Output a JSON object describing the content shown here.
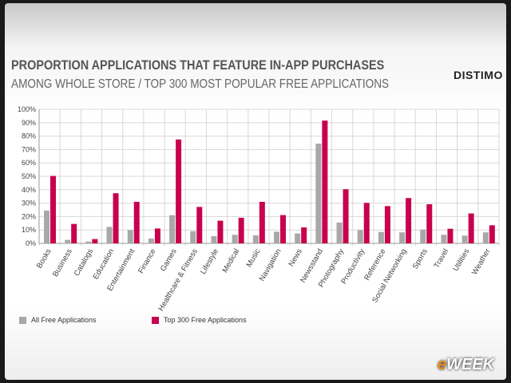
{
  "brand": "DISTIMO",
  "watermark": "eWEEK",
  "chart_data": {
    "type": "bar",
    "title": "PROPORTION APPLICATIONS THAT FEATURE IN-APP PURCHASES",
    "subtitle": "AMONG WHOLE STORE / TOP 300 MOST POPULAR FREE APPLICATIONS",
    "xlabel": "",
    "ylabel": "",
    "ylim": [
      0,
      100
    ],
    "yticks": [
      "0%",
      "10%",
      "20%",
      "30%",
      "40%",
      "50%",
      "60%",
      "70%",
      "80%",
      "90%",
      "100%"
    ],
    "grid": true,
    "legend_position": "bottom-left",
    "categories": [
      "Books",
      "Business",
      "Catalogs",
      "Education",
      "Entertainment",
      "Finance",
      "Games",
      "Healthcare & Fitness",
      "Lifestyle",
      "Medical",
      "Music",
      "Navigation",
      "News",
      "Newsstand",
      "Photography",
      "Productivity",
      "Reference",
      "Social Networking",
      "Sports",
      "Travel",
      "Utilities",
      "Weather"
    ],
    "series": [
      {
        "name": "All Free Applications",
        "color": "#a8a8a8",
        "values": [
          24.5,
          2.6,
          1.4,
          12.3,
          9.9,
          3.6,
          21,
          9.1,
          5.4,
          6.4,
          6,
          8.7,
          7.4,
          74.4,
          15.5,
          9.9,
          8.5,
          8.2,
          10.3,
          6.4,
          5.8,
          8.2
        ]
      },
      {
        "name": "Top 300 Free Applications",
        "color": "#c8004f",
        "values": [
          50.3,
          14.5,
          3.2,
          37.4,
          31,
          11.1,
          77.5,
          27.2,
          16.9,
          19.1,
          31,
          21.1,
          11.9,
          91.6,
          40.4,
          30.2,
          27.8,
          33.8,
          29.2,
          10.9,
          22.3,
          13.5
        ]
      }
    ]
  }
}
